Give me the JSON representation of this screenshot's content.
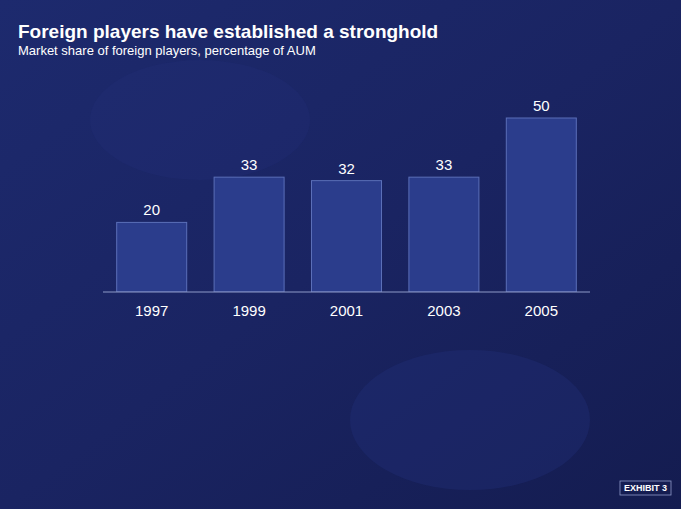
{
  "chart_data": {
    "type": "bar",
    "title": "Foreign players have established a stronghold",
    "subtitle": "Market share of foreign players, percentage of AUM",
    "categories": [
      "1997",
      "1999",
      "2001",
      "2003",
      "2005"
    ],
    "values": [
      20,
      33,
      32,
      33,
      50
    ],
    "color": "#2b3d8c",
    "ylim": [
      0,
      60
    ],
    "data_labels": true,
    "tick_labels": "x",
    "grid": false,
    "annotations": [
      "EXHIBIT 3"
    ]
  }
}
